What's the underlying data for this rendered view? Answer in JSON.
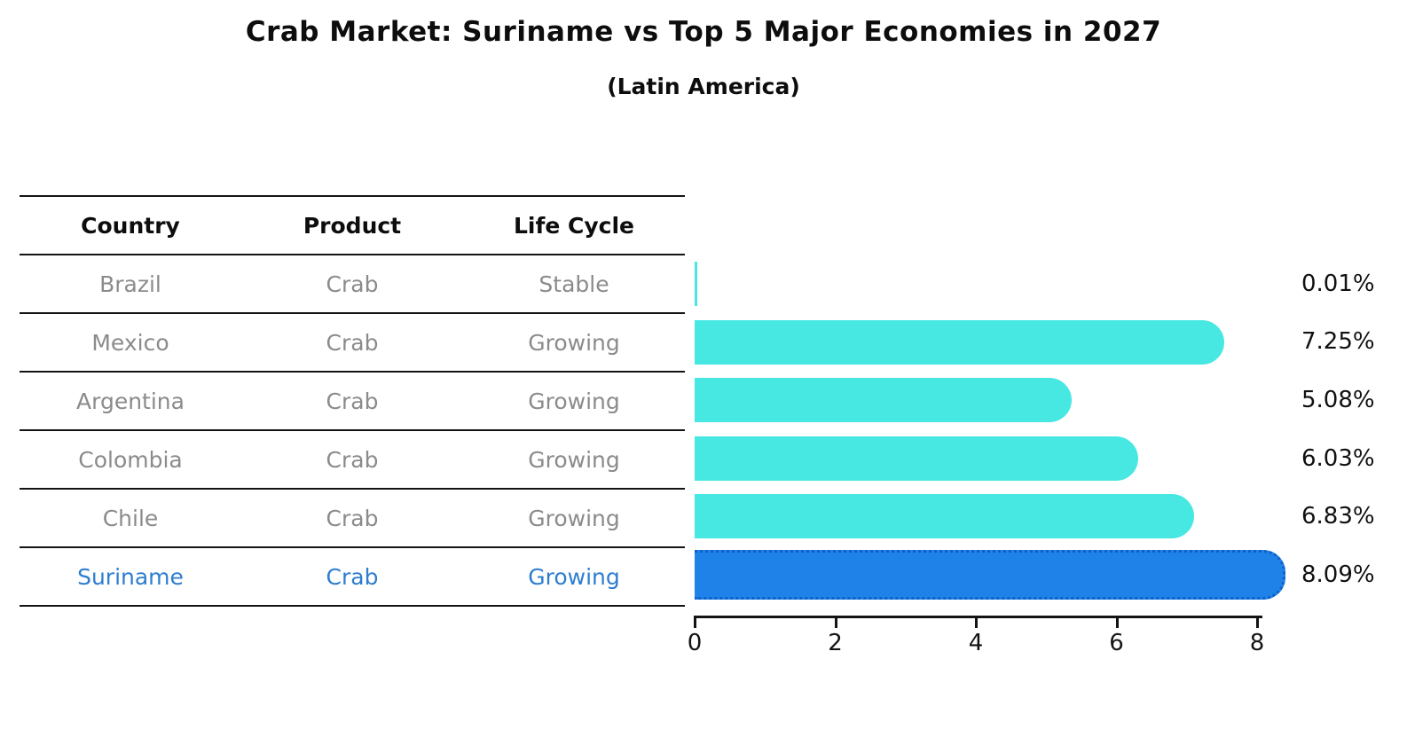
{
  "header": {
    "title": "Crab Market: Suriname vs Top 5 Major Economies in 2027",
    "subtitle": "(Latin America)"
  },
  "table": {
    "columns": [
      "Country",
      "Product",
      "Life Cycle"
    ],
    "rows": [
      {
        "country": "Brazil",
        "product": "Crab",
        "life_cycle": "Stable",
        "highlight": false
      },
      {
        "country": "Mexico",
        "product": "Crab",
        "life_cycle": "Growing",
        "highlight": false
      },
      {
        "country": "Argentina",
        "product": "Crab",
        "life_cycle": "Growing",
        "highlight": false
      },
      {
        "country": "Colombia",
        "product": "Crab",
        "life_cycle": "Growing",
        "highlight": false
      },
      {
        "country": "Chile",
        "product": "Crab",
        "life_cycle": "Growing",
        "highlight": false
      },
      {
        "country": "Suriname",
        "product": "Crab",
        "life_cycle": "Growing",
        "highlight": true
      }
    ]
  },
  "chart_data": {
    "type": "bar",
    "orientation": "horizontal",
    "title": "Crab Market: Suriname vs Top 5 Major Economies in 2027",
    "subtitle": "(Latin America)",
    "categories": [
      "Brazil",
      "Mexico",
      "Argentina",
      "Colombia",
      "Chile",
      "Suriname"
    ],
    "values": [
      0.01,
      7.25,
      5.08,
      6.03,
      6.83,
      8.09
    ],
    "value_labels": [
      "0.01%",
      "7.25%",
      "5.08%",
      "6.03%",
      "6.83%",
      "8.09%"
    ],
    "unit": "%",
    "highlight_category": "Suriname",
    "xlim": [
      0,
      8.55
    ],
    "xticks": [
      0,
      2,
      4,
      6,
      8
    ],
    "legend": "none",
    "grid": false,
    "bar_color": "#47e8e2",
    "highlight_color": "#1e82e8",
    "highlight_border_color": "#0f60c8",
    "label_color": "#111111",
    "table_text_color": "#8b8b8b",
    "highlight_text_color": "#2e7dd1"
  }
}
